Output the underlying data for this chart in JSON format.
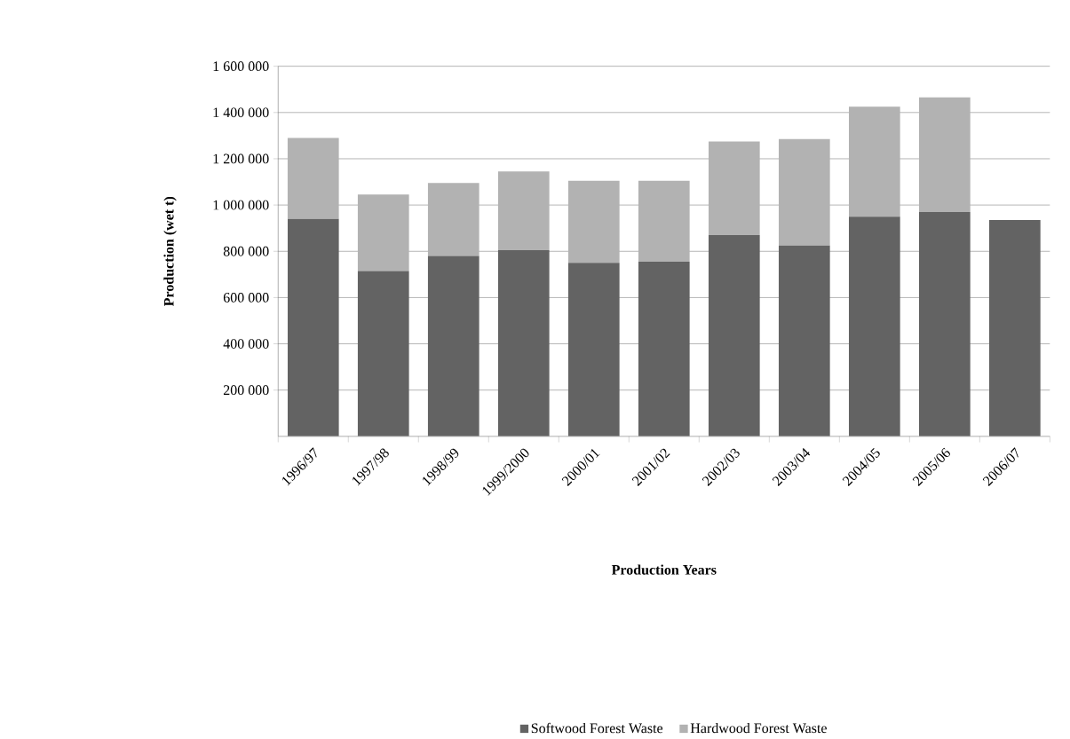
{
  "chart_data": {
    "type": "bar",
    "stacked": true,
    "xlabel": "Production Years",
    "ylabel": "Production    (wet t)",
    "categories": [
      "1996/97",
      "1997/98",
      "1998/99",
      "1999/2000",
      "2000/01",
      "2001/02",
      "2002/03",
      "2003/04",
      "2004/05",
      "2005/06",
      "2006/07"
    ],
    "series": [
      {
        "name": "Softwood Forest Waste",
        "color": "#636363",
        "values": [
          940000,
          715000,
          780000,
          805000,
          750000,
          755000,
          870000,
          825000,
          950000,
          970000,
          935000
        ]
      },
      {
        "name": "Hardwood Forest Waste",
        "color": "#b2b2b2",
        "values": [
          350000,
          330000,
          315000,
          340000,
          355000,
          350000,
          405000,
          460000,
          475000,
          495000,
          null
        ]
      }
    ],
    "ylim": [
      0,
      1600000
    ],
    "yticks": [
      {
        "value": 200000,
        "label": "200 000"
      },
      {
        "value": 400000,
        "label": "400 000"
      },
      {
        "value": 600000,
        "label": "600 000"
      },
      {
        "value": 800000,
        "label": "800 000"
      },
      {
        "value": 1000000,
        "label": "1 000 000"
      },
      {
        "value": 1200000,
        "label": "1 200 000"
      },
      {
        "value": 1400000,
        "label": "1 400 000"
      },
      {
        "value": 1600000,
        "label": "1 600 000"
      }
    ],
    "grid": "y",
    "legend": "bottom"
  }
}
